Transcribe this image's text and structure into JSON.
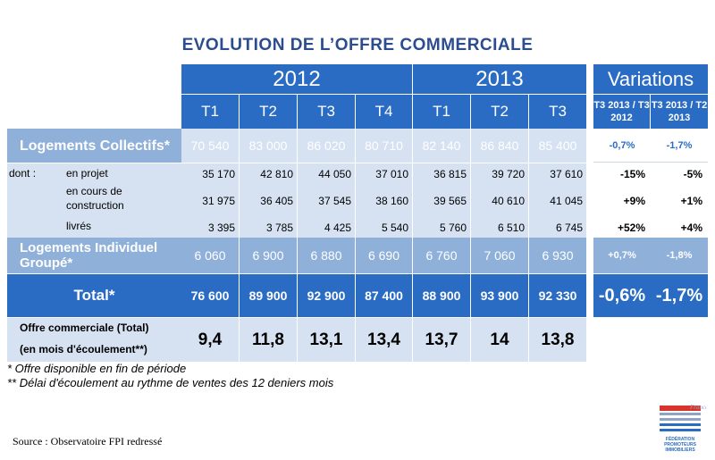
{
  "title": "EVOLUTION DE L’OFFRE COMMERCIALE",
  "years": [
    "2012",
    "2013"
  ],
  "variations_title": "Variations",
  "quarters": [
    "T1",
    "T2",
    "T3",
    "T4",
    "T1",
    "T2",
    "T3"
  ],
  "variation_headers": [
    "T3 2013 / T3 2012",
    "T3 2013 / T2 2013"
  ],
  "rows": {
    "collectifs": {
      "label": "Logements Collectifs*",
      "values": [
        "70 540",
        "83 000",
        "86 020",
        "80 710",
        "82 140",
        "86 840",
        "85 400"
      ],
      "variations": [
        "-0,7%",
        "-1,7%"
      ]
    },
    "dont_label": "dont :",
    "projet": {
      "label": "en projet",
      "values": [
        "35 170",
        "42 810",
        "44 050",
        "37 010",
        "36 815",
        "39 720",
        "37 610"
      ],
      "variations": [
        "-15%",
        "-5%"
      ]
    },
    "construction": {
      "label": "en cours de construction",
      "values": [
        "31 975",
        "36 405",
        "37 545",
        "38 160",
        "39 565",
        "40 610",
        "41 045"
      ],
      "variations": [
        "+9%",
        "+1%"
      ]
    },
    "livres": {
      "label": "livrés",
      "values": [
        "3 395",
        "3 785",
        "4 425",
        "5 540",
        "5 760",
        "6 510",
        "6 745"
      ],
      "variations": [
        "+52%",
        "+4%"
      ]
    },
    "individuel": {
      "label": "Logements Individuel Groupé*",
      "values": [
        "6 060",
        "6 900",
        "6 880",
        "6 690",
        "6 760",
        "7 060",
        "6 930"
      ],
      "variations": [
        "+0,7%",
        "-1,8%"
      ]
    },
    "total": {
      "label": "Total*",
      "values": [
        "76 600",
        "89 900",
        "92 900",
        "87 400",
        "88 900",
        "93 900",
        "92 330"
      ],
      "variations": [
        "-0,6%",
        "-1,7%"
      ]
    },
    "offre": {
      "label_line1": "Offre commerciale (Total)",
      "label_line2": "(en mois d'écoulement**)",
      "values": [
        "9,4",
        "11,8",
        "13,1",
        "13,4",
        "13,7",
        "14",
        "13,8"
      ]
    }
  },
  "footnotes": [
    "* Offre disponible en fin de période",
    "** Délai d'écoulement au rythme de ventes des 12 deniers mois"
  ],
  "source": "Source : Observatoire FPI redressé",
  "logo": {
    "text": "FÉDÉRATION PROMOTEURS IMMOBILIERS",
    "script": "France",
    "colors": [
      "#2a6cc3",
      "#d9342b",
      "#8fa3c7"
    ]
  }
}
